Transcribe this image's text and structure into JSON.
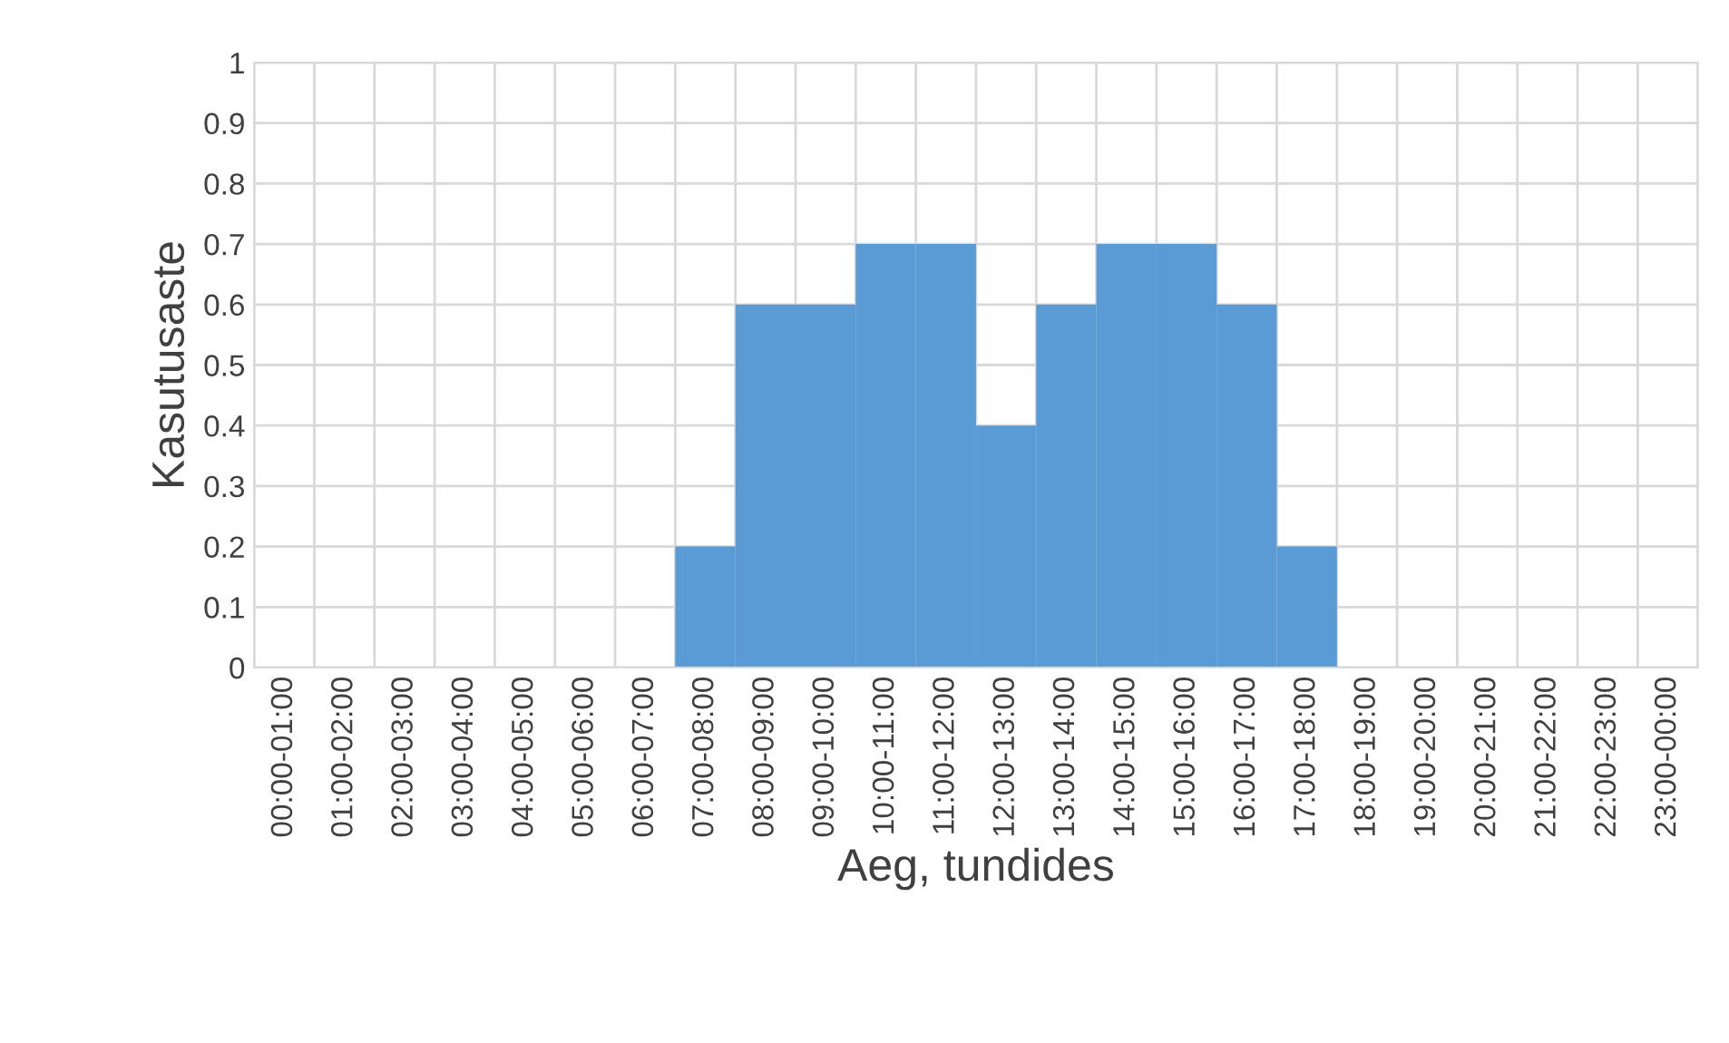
{
  "chart_data": {
    "type": "bar",
    "xlabel": "Aeg, tundides",
    "ylabel": "Kasutusaste",
    "categories": [
      "00:00-01:00",
      "01:00-02:00",
      "02:00-03:00",
      "03:00-04:00",
      "04:00-05:00",
      "05:00-06:00",
      "06:00-07:00",
      "07:00-08:00",
      "08:00-09:00",
      "09:00-10:00",
      "10:00-11:00",
      "11:00-12:00",
      "12:00-13:00",
      "13:00-14:00",
      "14:00-15:00",
      "15:00-16:00",
      "16:00-17:00",
      "17:00-18:00",
      "18:00-19:00",
      "19:00-20:00",
      "20:00-21:00",
      "21:00-22:00",
      "22:00-23:00",
      "23:00-00:00"
    ],
    "values": [
      0,
      0,
      0,
      0,
      0,
      0,
      0,
      0.2,
      0.6,
      0.6,
      0.7,
      0.7,
      0.4,
      0.6,
      0.7,
      0.7,
      0.6,
      0.2,
      0,
      0,
      0,
      0,
      0,
      0
    ],
    "color": "#5b9bd5",
    "ylim": [
      0,
      1
    ],
    "yticks": [
      0,
      0.1,
      0.2,
      0.3,
      0.4,
      0.5,
      0.6,
      0.7,
      0.8,
      0.9,
      1
    ],
    "grid": true,
    "legend": false
  }
}
